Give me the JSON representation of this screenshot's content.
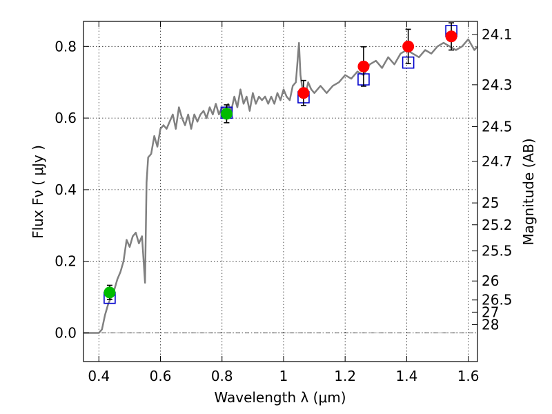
{
  "chart_data": {
    "type": "scatter",
    "xlabel": "Wavelength  λ (μm)",
    "ylabel": "Flux  Fν ( μJy )",
    "ylabel_right": "Magnitude (AB)",
    "xlim": [
      0.35,
      1.63
    ],
    "ylim": [
      -0.08,
      0.87
    ],
    "grid": true,
    "x_ticks": [
      0.4,
      0.6,
      0.8,
      1.0,
      1.2,
      1.4,
      1.6
    ],
    "x_tick_labels": [
      "0.4",
      "0.6",
      "0.8",
      "1",
      "1.2",
      "1.4",
      "1.6"
    ],
    "y_ticks": [
      0.0,
      0.2,
      0.4,
      0.6,
      0.8
    ],
    "y_tick_labels": [
      "0.0",
      "0.2",
      "0.4",
      "0.6",
      "0.8"
    ],
    "right_ticks": [
      {
        "label": "24.1",
        "flux": 0.833
      },
      {
        "label": "24.3",
        "flux": 0.693
      },
      {
        "label": "24.5",
        "flux": 0.576
      },
      {
        "label": "24.7",
        "flux": 0.479
      },
      {
        "label": "25",
        "flux": 0.363
      },
      {
        "label": "25.2",
        "flux": 0.302
      },
      {
        "label": "25.5",
        "flux": 0.229
      },
      {
        "label": "26",
        "flux": 0.145
      },
      {
        "label": "26.5",
        "flux": 0.092
      },
      {
        "label": "27",
        "flux": 0.058
      },
      {
        "label": "28",
        "flux": 0.023
      }
    ],
    "model_spectrum": {
      "color": "#808080",
      "x": [
        0.35,
        0.4,
        0.41,
        0.42,
        0.43,
        0.44,
        0.45,
        0.46,
        0.47,
        0.48,
        0.49,
        0.5,
        0.51,
        0.52,
        0.53,
        0.54,
        0.55,
        0.555,
        0.56,
        0.57,
        0.58,
        0.59,
        0.6,
        0.61,
        0.62,
        0.63,
        0.64,
        0.65,
        0.66,
        0.67,
        0.68,
        0.69,
        0.7,
        0.71,
        0.72,
        0.73,
        0.74,
        0.75,
        0.76,
        0.77,
        0.78,
        0.79,
        0.8,
        0.81,
        0.82,
        0.83,
        0.84,
        0.85,
        0.86,
        0.87,
        0.88,
        0.89,
        0.9,
        0.91,
        0.92,
        0.93,
        0.94,
        0.95,
        0.96,
        0.97,
        0.98,
        0.99,
        1.0,
        1.01,
        1.02,
        1.03,
        1.04,
        1.05,
        1.055,
        1.06,
        1.07,
        1.08,
        1.09,
        1.1,
        1.12,
        1.14,
        1.16,
        1.18,
        1.2,
        1.22,
        1.24,
        1.26,
        1.28,
        1.3,
        1.32,
        1.34,
        1.36,
        1.38,
        1.4,
        1.42,
        1.44,
        1.46,
        1.48,
        1.5,
        1.52,
        1.54,
        1.56,
        1.58,
        1.6,
        1.62,
        1.63
      ],
      "y": [
        0.0,
        0.0,
        0.01,
        0.05,
        0.08,
        0.1,
        0.12,
        0.15,
        0.17,
        0.2,
        0.26,
        0.24,
        0.27,
        0.28,
        0.25,
        0.27,
        0.14,
        0.42,
        0.49,
        0.5,
        0.55,
        0.52,
        0.57,
        0.58,
        0.57,
        0.59,
        0.61,
        0.57,
        0.63,
        0.6,
        0.58,
        0.61,
        0.57,
        0.61,
        0.59,
        0.61,
        0.62,
        0.6,
        0.63,
        0.61,
        0.64,
        0.61,
        0.63,
        0.62,
        0.64,
        0.62,
        0.66,
        0.63,
        0.68,
        0.64,
        0.66,
        0.62,
        0.67,
        0.64,
        0.66,
        0.65,
        0.66,
        0.64,
        0.66,
        0.64,
        0.67,
        0.65,
        0.68,
        0.66,
        0.65,
        0.69,
        0.7,
        0.81,
        0.72,
        0.69,
        0.66,
        0.7,
        0.68,
        0.67,
        0.69,
        0.67,
        0.69,
        0.7,
        0.72,
        0.71,
        0.73,
        0.72,
        0.75,
        0.76,
        0.74,
        0.77,
        0.75,
        0.78,
        0.79,
        0.78,
        0.77,
        0.79,
        0.78,
        0.8,
        0.81,
        0.8,
        0.79,
        0.8,
        0.82,
        0.79,
        0.8
      ]
    },
    "observed_red": {
      "color": "#ff0000",
      "x": [
        1.065,
        1.26,
        1.405,
        1.545
      ],
      "y": [
        0.67,
        0.744,
        0.8,
        0.828
      ],
      "err": [
        0.035,
        0.055,
        0.048,
        0.038
      ]
    },
    "observed_green": {
      "color": "#00bb00",
      "x": [
        0.435,
        0.815
      ],
      "y": [
        0.113,
        0.612
      ],
      "err": [
        0.02,
        0.025
      ]
    },
    "model_squares": {
      "color": "#0000cc",
      "x": [
        0.435,
        0.815,
        1.065,
        1.26,
        1.405,
        1.545
      ],
      "y": [
        0.098,
        0.615,
        0.658,
        0.708,
        0.755,
        0.843
      ]
    },
    "zero_line": {
      "y": 0.0,
      "style": "dash-dot"
    }
  }
}
